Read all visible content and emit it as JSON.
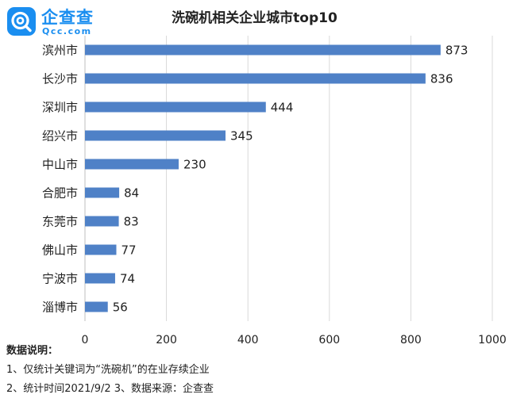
{
  "brand": {
    "name": "企查查",
    "domain": "Qcc.com",
    "accent": "#1a8ef0"
  },
  "chart_data": {
    "type": "bar",
    "orientation": "horizontal",
    "title": "洗碗机相关企业城市top10",
    "categories": [
      "滨州市",
      "长沙市",
      "深圳市",
      "绍兴市",
      "中山市",
      "合肥市",
      "东莞市",
      "佛山市",
      "宁波市",
      "淄博市"
    ],
    "values": [
      873,
      836,
      444,
      345,
      230,
      84,
      83,
      77,
      74,
      56
    ],
    "xlim": [
      0,
      1000
    ],
    "xticks": [
      0,
      200,
      400,
      600,
      800,
      1000
    ],
    "grid": true,
    "bar_color": "#4f81c7",
    "data_labels": true,
    "xlabel": "",
    "ylabel": ""
  },
  "notes": {
    "heading": "数据说明：",
    "lines": [
      "1、仅统计关键词为“洗碗机”的在业存续企业",
      "2、统计时间2021/9/2   3、数据来源：企查查"
    ]
  }
}
